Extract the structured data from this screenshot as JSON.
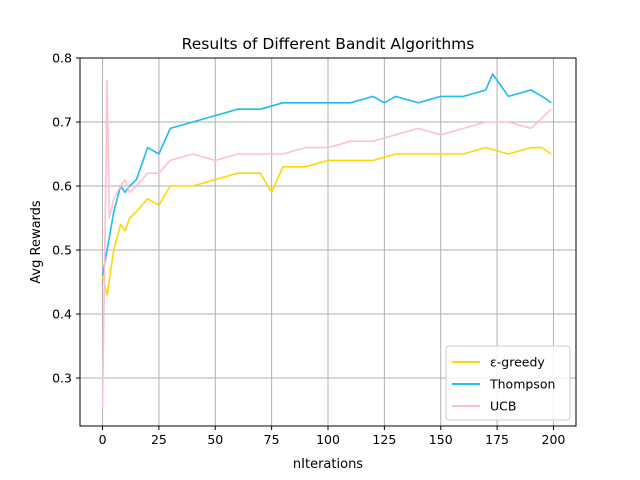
{
  "chart_data": {
    "type": "line",
    "title": "Results of Different Bandit Algorithms",
    "xlabel": "nIterations",
    "ylabel": "Avg Rewards",
    "xlim": [
      -10,
      210
    ],
    "ylim": [
      0.225,
      0.8
    ],
    "xticks": [
      0,
      25,
      50,
      75,
      100,
      125,
      150,
      175,
      200
    ],
    "yticks": [
      0.3,
      0.4,
      0.5,
      0.6,
      0.7,
      0.8
    ],
    "xtick_labels": [
      "0",
      "25",
      "50",
      "75",
      "100",
      "125",
      "150",
      "175",
      "200"
    ],
    "ytick_labels": [
      "0.3",
      "0.4",
      "0.5",
      "0.6",
      "0.7",
      "0.8"
    ],
    "grid": true,
    "legend_position": "lower-right",
    "series": [
      {
        "name": "ε-greedy",
        "color": "#FFD700",
        "x": [
          0,
          2,
          5,
          8,
          10,
          12,
          15,
          20,
          25,
          30,
          40,
          50,
          60,
          70,
          75,
          80,
          90,
          100,
          110,
          120,
          130,
          140,
          150,
          160,
          170,
          180,
          190,
          195,
          199
        ],
        "y": [
          0.46,
          0.43,
          0.5,
          0.54,
          0.53,
          0.55,
          0.56,
          0.58,
          0.57,
          0.6,
          0.6,
          0.61,
          0.62,
          0.62,
          0.59,
          0.63,
          0.63,
          0.64,
          0.64,
          0.64,
          0.65,
          0.65,
          0.65,
          0.65,
          0.66,
          0.65,
          0.66,
          0.66,
          0.65
        ]
      },
      {
        "name": "Thompson",
        "color": "#1EBCF0",
        "x": [
          0,
          2,
          5,
          8,
          10,
          12,
          15,
          20,
          25,
          30,
          40,
          50,
          60,
          70,
          80,
          90,
          100,
          110,
          120,
          125,
          130,
          140,
          150,
          160,
          170,
          173,
          180,
          190,
          195,
          199
        ],
        "y": [
          0.46,
          0.5,
          0.56,
          0.6,
          0.59,
          0.6,
          0.61,
          0.66,
          0.65,
          0.69,
          0.7,
          0.71,
          0.72,
          0.72,
          0.73,
          0.73,
          0.73,
          0.73,
          0.74,
          0.73,
          0.74,
          0.73,
          0.74,
          0.74,
          0.75,
          0.775,
          0.74,
          0.75,
          0.74,
          0.73
        ]
      },
      {
        "name": "UCB",
        "color": "#FFC0CB",
        "x": [
          0,
          1,
          2,
          3,
          5,
          8,
          10,
          12,
          15,
          20,
          25,
          30,
          40,
          50,
          60,
          70,
          80,
          90,
          100,
          110,
          120,
          130,
          140,
          150,
          160,
          170,
          180,
          190,
          199
        ],
        "y": [
          0.25,
          0.5,
          0.765,
          0.55,
          0.58,
          0.6,
          0.61,
          0.59,
          0.6,
          0.62,
          0.62,
          0.64,
          0.65,
          0.64,
          0.65,
          0.65,
          0.65,
          0.66,
          0.66,
          0.67,
          0.67,
          0.68,
          0.69,
          0.68,
          0.69,
          0.7,
          0.7,
          0.69,
          0.72
        ]
      }
    ]
  }
}
